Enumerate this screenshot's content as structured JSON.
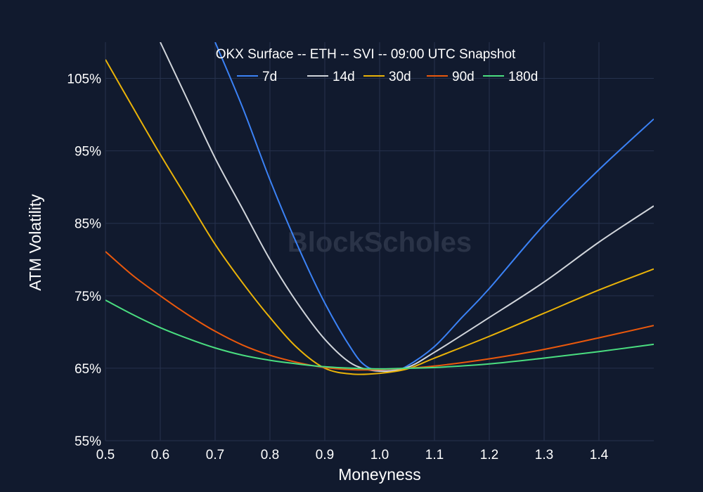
{
  "chart_data": {
    "type": "line",
    "title": "OKX Surface -- ETH -- SVI -- 09:00 UTC Snapshot",
    "xlabel": "Moneyness",
    "ylabel": "ATM Volatility",
    "watermark": "BlockScholes",
    "xlim": [
      0.5,
      1.5
    ],
    "ylim": [
      55,
      110
    ],
    "x_ticks": [
      0.5,
      0.6,
      0.7,
      0.8,
      0.9,
      1.0,
      1.1,
      1.2,
      1.3,
      1.4
    ],
    "x_tick_labels": [
      "0.5",
      "0.6",
      "0.7",
      "0.8",
      "0.9",
      "1.0",
      "1.1",
      "1.2",
      "1.3",
      "1.4"
    ],
    "y_ticks": [
      55,
      65,
      75,
      85,
      95,
      105
    ],
    "y_tick_labels": [
      "55%",
      "65%",
      "75%",
      "85%",
      "95%",
      "105%"
    ],
    "grid": true,
    "legend_position": "top-center",
    "series": [
      {
        "name": "7d",
        "color": "#3b82f6",
        "x": [
          0.7,
          0.75,
          0.8,
          0.85,
          0.9,
          0.95,
          0.975,
          1.0,
          1.025,
          1.05,
          1.1,
          1.15,
          1.2,
          1.3,
          1.4,
          1.5
        ],
        "y": [
          110,
          101,
          91,
          82,
          74,
          67.5,
          65.3,
          64.7,
          64.7,
          65.3,
          68,
          72,
          76,
          84.8,
          92.4,
          99.4
        ]
      },
      {
        "name": "14d",
        "color": "#d1d5db",
        "x": [
          0.6,
          0.65,
          0.7,
          0.75,
          0.8,
          0.85,
          0.9,
          0.95,
          1.0,
          1.05,
          1.1,
          1.2,
          1.3,
          1.4,
          1.5
        ],
        "y": [
          110,
          102,
          94,
          87,
          80,
          74,
          69,
          65.6,
          64.6,
          65.1,
          67.2,
          72,
          76.9,
          82.4,
          87.4
        ]
      },
      {
        "name": "30d",
        "color": "#eab308",
        "x": [
          0.5,
          0.55,
          0.6,
          0.65,
          0.7,
          0.75,
          0.8,
          0.85,
          0.9,
          0.95,
          1.0,
          1.05,
          1.1,
          1.2,
          1.3,
          1.4,
          1.5
        ],
        "y": [
          107.6,
          101,
          94.5,
          88.3,
          82.1,
          76.8,
          72,
          67.8,
          65,
          64.2,
          64.3,
          64.9,
          66.4,
          69.4,
          72.6,
          75.8,
          78.7
        ]
      },
      {
        "name": "90d",
        "color": "#ea580c",
        "x": [
          0.5,
          0.55,
          0.6,
          0.65,
          0.7,
          0.75,
          0.8,
          0.85,
          0.9,
          0.95,
          1.0,
          1.05,
          1.1,
          1.2,
          1.3,
          1.4,
          1.5
        ],
        "y": [
          81.1,
          77.8,
          75,
          72.4,
          70.1,
          68.2,
          66.8,
          65.8,
          65.1,
          64.8,
          64.8,
          65,
          65.3,
          66.3,
          67.6,
          69.2,
          70.9
        ]
      },
      {
        "name": "180d",
        "color": "#4ade80",
        "x": [
          0.5,
          0.55,
          0.6,
          0.65,
          0.7,
          0.75,
          0.8,
          0.85,
          0.9,
          0.95,
          1.0,
          1.05,
          1.1,
          1.2,
          1.3,
          1.4,
          1.5
        ],
        "y": [
          74.4,
          72.4,
          70.6,
          69.1,
          67.8,
          66.8,
          66.1,
          65.6,
          65.2,
          65,
          64.9,
          65,
          65.1,
          65.6,
          66.4,
          67.3,
          68.3
        ]
      }
    ]
  }
}
